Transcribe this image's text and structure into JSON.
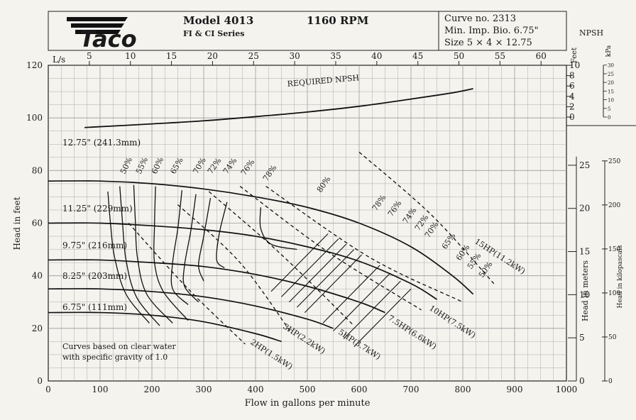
{
  "header": {
    "model": "Model 4013",
    "series": "FI & CI Series",
    "rpm": "1160 RPM",
    "curve_no": "Curve no. 2313",
    "min_imp": "Min. Imp. Bio. 6.75\"",
    "size": "Size 5 × 4 × 12.75",
    "logo_text": "Taco"
  },
  "chart_data": {
    "type": "line",
    "xlabel": "Flow in gallons per minute",
    "ylabel": "Head in feet",
    "xlim": [
      0,
      1000
    ],
    "ylim": [
      0,
      120
    ],
    "x_ticks": [
      "0",
      "100",
      "200",
      "300",
      "400",
      "500",
      "600",
      "700",
      "800",
      "900",
      "1000"
    ],
    "y_ticks": [
      "0",
      "20",
      "40",
      "60",
      "80",
      "100",
      "120"
    ],
    "ls_label": "L/s",
    "ls_ticks": [
      "5",
      "10",
      "15",
      "20",
      "25",
      "30",
      "35",
      "40",
      "45",
      "50",
      "55",
      "60"
    ],
    "right_meters_label": "Head in meters",
    "right_meters_ticks": [
      "0",
      "5",
      "10",
      "15",
      "20",
      "25"
    ],
    "right_kpa_label": "Head in kilopascals",
    "right_kpa_ticks": [
      "0",
      "50",
      "100",
      "150",
      "200",
      "250"
    ],
    "npsh_title": "NPSH",
    "npsh_feet_label": "Feet",
    "npsh_kpa_label": "kPa",
    "npsh_feet_ticks": [
      "0",
      "2",
      "4",
      "6",
      "8",
      "10"
    ],
    "npsh_kpa_ticks": [
      "0",
      "5",
      "10",
      "15",
      "20",
      "25",
      "30"
    ],
    "npsh_curve_label": "REQUIRED NPSH",
    "npsh_curve": [
      [
        70,
        2.5
      ],
      [
        200,
        3.2
      ],
      [
        300,
        3.8
      ],
      [
        400,
        4.6
      ],
      [
        500,
        5.5
      ],
      [
        600,
        6.6
      ],
      [
        700,
        8.0
      ],
      [
        780,
        9.2
      ],
      [
        820,
        10
      ]
    ],
    "note": [
      "Curves based on clear water",
      "with specific gravity of 1.0"
    ],
    "impeller_curves": [
      {
        "name": "12.75\" (241.3mm)",
        "points": [
          [
            0,
            76
          ],
          [
            100,
            76
          ],
          [
            200,
            75
          ],
          [
            300,
            73
          ],
          [
            400,
            70
          ],
          [
            500,
            66
          ],
          [
            600,
            60
          ],
          [
            700,
            51
          ],
          [
            780,
            40
          ],
          [
            820,
            33
          ]
        ]
      },
      {
        "name": "11.25\" (229mm)",
        "points": [
          [
            0,
            60
          ],
          [
            100,
            60
          ],
          [
            200,
            59
          ],
          [
            300,
            57.5
          ],
          [
            400,
            55
          ],
          [
            500,
            51
          ],
          [
            600,
            45.5
          ],
          [
            700,
            37
          ],
          [
            750,
            31
          ]
        ]
      },
      {
        "name": "9.75\" (216mm)",
        "points": [
          [
            0,
            46
          ],
          [
            100,
            46
          ],
          [
            200,
            45
          ],
          [
            300,
            43.5
          ],
          [
            400,
            40.5
          ],
          [
            500,
            36
          ],
          [
            600,
            30
          ],
          [
            650,
            26
          ]
        ]
      },
      {
        "name": "8.25\" (203mm)",
        "points": [
          [
            0,
            35
          ],
          [
            100,
            35
          ],
          [
            200,
            34
          ],
          [
            300,
            32
          ],
          [
            400,
            28.5
          ],
          [
            500,
            23.5
          ],
          [
            550,
            20
          ]
        ]
      },
      {
        "name": "6.75\" (111mm)",
        "points": [
          [
            0,
            26
          ],
          [
            100,
            26
          ],
          [
            200,
            25
          ],
          [
            300,
            22.5
          ],
          [
            400,
            18
          ],
          [
            450,
            15
          ]
        ]
      }
    ],
    "efficiency_labels": [
      "50%",
      "55%",
      "60%",
      "65%",
      "70%",
      "72%",
      "74%",
      "76%",
      "78%",
      "80%",
      "78%",
      "76%",
      "74%",
      "72%",
      "70%",
      "65%",
      "60%",
      "55%",
      "50%"
    ],
    "efficiency_curves": [
      {
        "name": "50%",
        "points": [
          [
            115,
            72
          ],
          [
            120,
            60
          ],
          [
            128,
            47
          ],
          [
            150,
            33
          ],
          [
            195,
            22
          ]
        ]
      },
      {
        "name": "55%",
        "points": [
          [
            138,
            74
          ],
          [
            143,
            61
          ],
          [
            150,
            46
          ],
          [
            170,
            32
          ],
          [
            215,
            21
          ]
        ]
      },
      {
        "name": "60%",
        "points": [
          [
            165,
            74.5
          ],
          [
            168,
            61
          ],
          [
            172,
            47
          ],
          [
            190,
            33
          ],
          [
            240,
            22
          ]
        ]
      },
      {
        "name": "65%",
        "points": [
          [
            207,
            74
          ],
          [
            205,
            59
          ],
          [
            205,
            45
          ],
          [
            222,
            34
          ],
          [
            270,
            23
          ]
        ]
      },
      {
        "name": "70%",
        "points": [
          [
            258,
            72.5
          ],
          [
            250,
            58
          ],
          [
            240,
            45
          ],
          [
            240,
            35
          ],
          [
            270,
            29
          ]
        ]
      },
      {
        "name": "72%",
        "points": [
          [
            285,
            71
          ],
          [
            275,
            57
          ],
          [
            263,
            44
          ],
          [
            263,
            36
          ],
          [
            290,
            30
          ]
        ]
      },
      {
        "name": "74%",
        "points": [
          [
            313,
            69.5
          ],
          [
            300,
            55
          ],
          [
            290,
            44
          ],
          [
            300,
            38
          ]
        ]
      },
      {
        "name": "76%",
        "points": [
          [
            345,
            68
          ],
          [
            330,
            56
          ],
          [
            325,
            46
          ],
          [
            340,
            43
          ]
        ]
      },
      {
        "name": "80%",
        "points": [
          [
            410,
            66
          ],
          [
            410,
            58
          ],
          [
            430,
            52
          ],
          [
            480,
            50
          ]
        ]
      }
    ],
    "hp_lines": [
      {
        "name": "2HP(1.5kW)",
        "points": [
          [
            155,
            60
          ],
          [
            270,
            35
          ],
          [
            380,
            14
          ]
        ]
      },
      {
        "name": "3HP(2.2kW)",
        "points": [
          [
            250,
            67
          ],
          [
            370,
            45
          ],
          [
            470,
            18
          ]
        ]
      },
      {
        "name": "5HP(3.7kW)",
        "points": [
          [
            310,
            72
          ],
          [
            450,
            48
          ],
          [
            590,
            21
          ]
        ]
      },
      {
        "name": "7.5HP(6.6kW)",
        "points": [
          [
            370,
            74
          ],
          [
            540,
            49
          ],
          [
            720,
            27
          ]
        ]
      },
      {
        "name": "10HP(7.5kW)",
        "points": [
          [
            420,
            74
          ],
          [
            620,
            47
          ],
          [
            800,
            30
          ]
        ]
      },
      {
        "name": "15HP(11.2kW)",
        "points": [
          [
            600,
            87
          ],
          [
            740,
            63
          ],
          [
            860,
            37
          ]
        ]
      }
    ],
    "hp_labels": [
      "2HP(1.5kW)",
      "3HP(2.2kW)",
      "5HP(3.7kW)",
      "7.5HP(6.6kW)",
      "10HP(7.5kW)",
      "15HP(11.2kW)"
    ],
    "grid": true
  }
}
